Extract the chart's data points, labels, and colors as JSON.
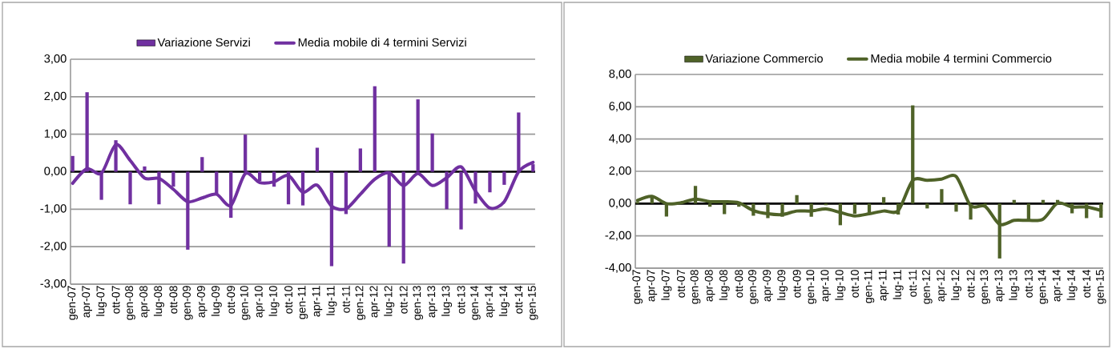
{
  "chart_data": [
    {
      "type": "bar",
      "categories": [
        "gen-07",
        "apr-07",
        "lug-07",
        "ott-07",
        "gen-08",
        "apr-08",
        "lug-08",
        "ott-08",
        "gen-09",
        "apr-09",
        "lug-09",
        "ott-09",
        "gen-10",
        "apr-10",
        "lug-10",
        "ott-10",
        "gen-11",
        "apr-11",
        "lug-11",
        "ott-11",
        "gen-12",
        "apr-12",
        "lug-12",
        "ott-12",
        "gen-13",
        "apr-13",
        "lug-13",
        "ott-13",
        "gen-14",
        "apr-14",
        "lug-14",
        "ott-14",
        "gen-15"
      ],
      "series": [
        {
          "name": "Variazione Servizi",
          "color": "#7030a0",
          "values": [
            0.42,
            2.12,
            -0.75,
            0.84,
            -0.87,
            0.14,
            -0.87,
            -0.4,
            -2.08,
            0.39,
            -0.6,
            -1.23,
            0.99,
            -0.25,
            -0.4,
            -0.87,
            -0.9,
            0.64,
            -2.52,
            -1.13,
            0.62,
            2.28,
            -2.0,
            -2.45,
            1.93,
            1.02,
            -1.0,
            -1.54,
            -0.85,
            -0.55,
            -0.35,
            1.58,
            0.2
          ]
        },
        {
          "name": "Media mobile di 4 termini Servizi",
          "type": "line",
          "color": "#7030a0",
          "values": [
            -0.31,
            0.08,
            -0.04,
            0.72,
            0.3,
            -0.17,
            -0.18,
            -0.47,
            -0.8,
            -0.7,
            -0.6,
            -0.9,
            -0.05,
            -0.29,
            -0.27,
            -0.1,
            -0.55,
            -0.36,
            -0.92,
            -0.99,
            -0.6,
            -0.2,
            -0.03,
            -0.37,
            -0.05,
            -0.37,
            -0.16,
            0.13,
            -0.52,
            -0.97,
            -0.8,
            0.0,
            0.25
          ]
        }
      ],
      "ylim": [
        -3,
        3
      ],
      "yticks": [
        {
          "value": -3,
          "label": "-3,00"
        },
        {
          "value": -2,
          "label": "-2,00"
        },
        {
          "value": -1,
          "label": "-1,00"
        },
        {
          "value": 0,
          "label": "0,00"
        },
        {
          "value": 1,
          "label": "1,00"
        },
        {
          "value": 2,
          "label": "2,00"
        },
        {
          "value": 3,
          "label": "3,00"
        }
      ],
      "grid": "y",
      "legend": "top"
    },
    {
      "type": "bar",
      "categories": [
        "gen-07",
        "apr-07",
        "lug-07",
        "ott-07",
        "gen-08",
        "apr-08",
        "lug-08",
        "ott-08",
        "gen-09",
        "apr-09",
        "lug-09",
        "ott-09",
        "gen-10",
        "apr-10",
        "lug-10",
        "ott-10",
        "gen-11",
        "apr-11",
        "lug-11",
        "ott-11",
        "gen-12",
        "apr-12",
        "lug-12",
        "ott-12",
        "gen-13",
        "apr-13",
        "lug-13",
        "ott-13",
        "gen-14",
        "apr-14",
        "lug-14",
        "ott-14",
        "gen-15"
      ],
      "series": [
        {
          "name": "Variazione Commercio",
          "color": "#4f6228",
          "values": [
            0.1,
            0.5,
            -0.8,
            0.0,
            1.1,
            -0.2,
            -0.65,
            -0.2,
            -0.75,
            -0.9,
            -0.82,
            0.52,
            -0.82,
            -0.1,
            -1.34,
            -0.63,
            -0.55,
            0.4,
            -0.68,
            6.09,
            -0.3,
            0.9,
            -0.5,
            -0.99,
            -0.1,
            -3.4,
            0.23,
            -1.0,
            0.23,
            0.23,
            -0.6,
            -0.9,
            -0.87
          ]
        },
        {
          "name": "Media mobile 4 termini Commercio",
          "type": "line",
          "color": "#4f6228",
          "values": [
            0.2,
            0.45,
            0.0,
            0.05,
            0.28,
            0.12,
            0.12,
            0.05,
            -0.43,
            -0.63,
            -0.68,
            -0.46,
            -0.46,
            -0.33,
            -0.55,
            -0.76,
            -0.63,
            -0.46,
            -0.43,
            1.44,
            1.44,
            1.52,
            1.68,
            -0.13,
            -0.17,
            -1.29,
            -1.04,
            -1.04,
            -0.96,
            0.03,
            -0.21,
            -0.21,
            -0.43
          ]
        }
      ],
      "ylim": [
        -4,
        8
      ],
      "yticks": [
        {
          "value": -4,
          "label": "-4,00"
        },
        {
          "value": -2,
          "label": "-2,00"
        },
        {
          "value": 0,
          "label": "0,00"
        },
        {
          "value": 2,
          "label": "2,00"
        },
        {
          "value": 4,
          "label": "4,00"
        },
        {
          "value": 6,
          "label": "6,00"
        },
        {
          "value": 8,
          "label": "8,00"
        }
      ],
      "grid": "y",
      "legend": "top"
    }
  ]
}
